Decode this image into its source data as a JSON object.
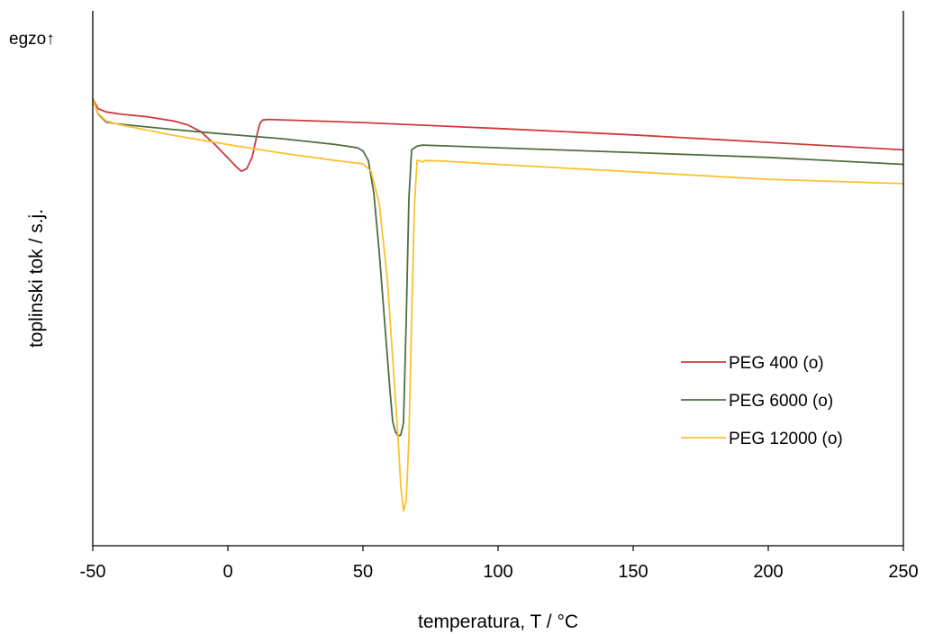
{
  "chart_data": {
    "type": "line",
    "title": "",
    "xlabel": "temperatura, T / °C",
    "ylabel": "toplinski tok / s.j.",
    "corner_label": "egzo↑",
    "xlim": [
      -50,
      250
    ],
    "ylim": [
      0,
      1
    ],
    "x_ticks": [
      -50,
      0,
      50,
      100,
      150,
      200,
      250
    ],
    "x_tick_labels": [
      "-50",
      "0",
      "50",
      "100",
      "150",
      "200",
      "250"
    ],
    "y_ticks_shown": false,
    "grid": false,
    "legend_position": "right",
    "series": [
      {
        "name": "PEG 400 (o)",
        "color": "#d0383a",
        "x": [
          -50,
          -48,
          -45,
          -40,
          -30,
          -20,
          -15,
          -10,
          -5,
          0,
          3,
          5,
          7,
          9,
          10,
          11,
          12,
          13,
          15,
          50,
          100,
          150,
          200,
          250
        ],
        "y": [
          0.835,
          0.817,
          0.811,
          0.807,
          0.802,
          0.794,
          0.787,
          0.774,
          0.751,
          0.725,
          0.709,
          0.7,
          0.705,
          0.727,
          0.75,
          0.773,
          0.791,
          0.796,
          0.797,
          0.791,
          0.78,
          0.768,
          0.754,
          0.74
        ]
      },
      {
        "name": "PEG 6000 (o)",
        "color": "#4e6e40",
        "x": [
          -50,
          -48,
          -45,
          -40,
          -20,
          0,
          20,
          40,
          48,
          50,
          52,
          54,
          56,
          58,
          60,
          61,
          62,
          63,
          64,
          65,
          66,
          67,
          68,
          70,
          72,
          100,
          150,
          200,
          250
        ],
        "y": [
          0.835,
          0.807,
          0.792,
          0.788,
          0.778,
          0.769,
          0.761,
          0.75,
          0.744,
          0.738,
          0.72,
          0.66,
          0.55,
          0.42,
          0.29,
          0.232,
          0.213,
          0.205,
          0.207,
          0.23,
          0.42,
          0.65,
          0.74,
          0.747,
          0.749,
          0.744,
          0.735,
          0.726,
          0.713
        ]
      },
      {
        "name": "PEG 12000 (o)",
        "color": "#fdc02f",
        "x": [
          -50,
          -48,
          -45,
          -40,
          -20,
          0,
          20,
          40,
          50,
          53,
          56,
          59,
          61,
          63,
          64,
          65,
          66,
          67,
          68,
          69,
          70,
          71,
          72,
          73,
          80,
          100,
          150,
          200,
          250
        ],
        "y": [
          0.835,
          0.808,
          0.794,
          0.787,
          0.767,
          0.75,
          0.734,
          0.72,
          0.714,
          0.7,
          0.64,
          0.5,
          0.35,
          0.2,
          0.11,
          0.065,
          0.085,
          0.2,
          0.42,
          0.63,
          0.72,
          0.72,
          0.717,
          0.72,
          0.719,
          0.713,
          0.699,
          0.685,
          0.677
        ]
      }
    ]
  }
}
